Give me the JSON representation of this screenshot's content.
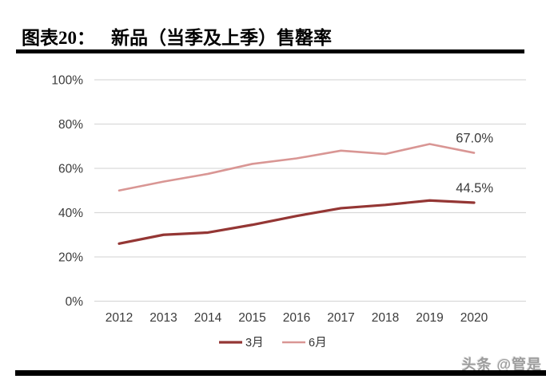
{
  "header": {
    "label": "图表20：",
    "title": "新品（当季及上季）售罄率"
  },
  "chart_data": {
    "type": "line",
    "categories": [
      "2012",
      "2013",
      "2014",
      "2015",
      "2016",
      "2017",
      "2018",
      "2019",
      "2020"
    ],
    "series": [
      {
        "name": "3月",
        "color": "#943634",
        "width": 3.2,
        "values": [
          26,
          30,
          31,
          34.5,
          38.5,
          42,
          43.5,
          45.5,
          44.5
        ],
        "end_label": "44.5%"
      },
      {
        "name": "6月",
        "color": "#D99694",
        "width": 2.6,
        "values": [
          50,
          54,
          57.5,
          62,
          64.5,
          68,
          66.5,
          71,
          67
        ],
        "end_label": "67.0%"
      }
    ],
    "ylim": [
      0,
      100
    ],
    "yticks": [
      0,
      20,
      40,
      60,
      80,
      100
    ],
    "ytick_labels": [
      "0%",
      "20%",
      "40%",
      "60%",
      "80%",
      "100%"
    ],
    "grid": true,
    "legend_position": "bottom-center",
    "colors": {
      "gridline": "#d9d9d9",
      "tick_text": "#3b3b3b",
      "annotation_text": "#3b3b3b",
      "legend_text": "#333333"
    }
  },
  "watermark": {
    "text": "头条 @管是"
  }
}
